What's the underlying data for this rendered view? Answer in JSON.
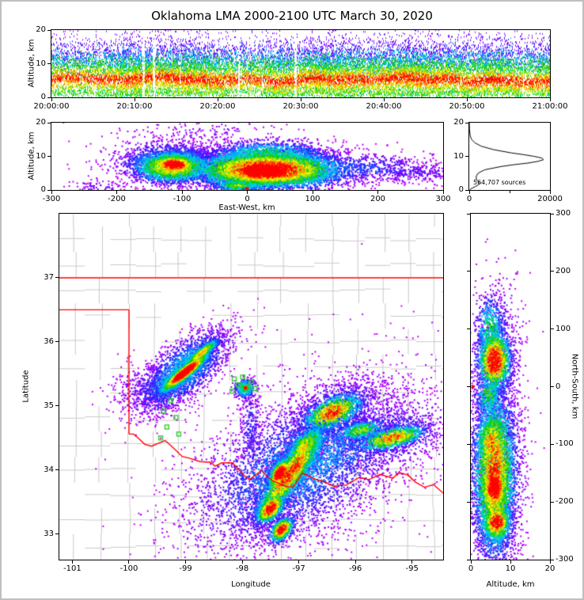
{
  "title": "Oklahoma LMA 2000-2100 UTC March 30, 2020",
  "colors": {
    "background": "#ffffff",
    "frame": "#000000",
    "state_border": "#ff0000",
    "county_border": "#c9c9c9",
    "station_marker": "#33cc33",
    "center_marker": "#ff0000",
    "histogram_line": "#000000",
    "colormap": [
      {
        "t": 0.0,
        "hex": "#cc00ff"
      },
      {
        "t": 0.1,
        "hex": "#8800ff"
      },
      {
        "t": 0.22,
        "hex": "#2222ff"
      },
      {
        "t": 0.34,
        "hex": "#00a0ff"
      },
      {
        "t": 0.46,
        "hex": "#00e0d0"
      },
      {
        "t": 0.58,
        "hex": "#00c800"
      },
      {
        "t": 0.7,
        "hex": "#90e000"
      },
      {
        "t": 0.79,
        "hex": "#ffff00"
      },
      {
        "t": 0.89,
        "hex": "#ff9800"
      },
      {
        "t": 1.0,
        "hex": "#ff0000"
      }
    ]
  },
  "chart_data": [
    {
      "id": "time_height",
      "type": "heatmap",
      "ylabel": "Altitude, km",
      "xlabel": "",
      "x_ticks": [
        "20:00:00",
        "20:10:00",
        "20:20:00",
        "20:30:00",
        "20:40:00",
        "20:50:00",
        "21:00:00"
      ],
      "ylim": [
        0,
        20
      ],
      "y_ticks": [
        0,
        10,
        20
      ],
      "description": "LMA source density vs time and altitude; dense red band 3-8 km with multicolor speckle above to ~18 km and occasional white gaps",
      "bands": [
        {
          "alt_center": 5.2,
          "alt_sigma": 1.8,
          "weight": 0.4,
          "intensity": 0.92
        },
        {
          "alt_center": 8.6,
          "alt_sigma": 1.8,
          "weight": 0.2,
          "intensity": 0.55
        },
        {
          "alt_center": 11.0,
          "alt_sigma": 1.8,
          "weight": 0.14,
          "intensity": 0.34
        },
        {
          "alt_center": 13.5,
          "alt_sigma": 2.2,
          "weight": 0.12,
          "intensity": 0.14
        },
        {
          "alt_center": 1.4,
          "alt_sigma": 1.2,
          "weight": 0.14,
          "intensity": 0.6
        }
      ]
    },
    {
      "id": "ew_cross_section",
      "type": "heatmap",
      "xlabel": "East-West, km",
      "ylabel": "Altitude, km",
      "xlim": [
        -300,
        300
      ],
      "x_ticks": [
        -300,
        -200,
        -100,
        0,
        100,
        200,
        300
      ],
      "ylim": [
        0,
        20
      ],
      "y_ticks": [
        0,
        10,
        20
      ],
      "center_marker": [
        0,
        0.4
      ],
      "features": [
        {
          "x": 30,
          "y": 6.0,
          "sx": 60,
          "sy": 2.9,
          "n": 6000,
          "peak": 0.97
        },
        {
          "x": 25,
          "y": 5.5,
          "sx": 35,
          "sy": 2.2,
          "n": 3500,
          "peak": 1.0
        },
        {
          "x": 30,
          "y": 10.5,
          "sx": 48,
          "sy": 2.2,
          "n": 1200,
          "peak": 0.5
        },
        {
          "x": 150,
          "y": 6.5,
          "sx": 75,
          "sy": 2.4,
          "n": 900,
          "peak": 0.25
        },
        {
          "x": 260,
          "y": 5.0,
          "sx": 40,
          "sy": 1.5,
          "n": 250,
          "peak": 0.15
        },
        {
          "x": -70,
          "y": 17.0,
          "sx": 70,
          "sy": 1.8,
          "n": 120,
          "peak": 0.1
        },
        {
          "x": -15,
          "y": 1.2,
          "sx": 20,
          "sy": 0.9,
          "n": 350,
          "peak": 0.6
        },
        {
          "x": -225,
          "y": 1.0,
          "sx": 25,
          "sy": 0.8,
          "n": 80,
          "peak": 0.12
        },
        {
          "x": -112,
          "y": 7.5,
          "sx": 18,
          "sy": 1.5,
          "n": 1400,
          "peak": 1.0
        },
        {
          "x": -115,
          "y": 7.0,
          "sx": 33,
          "sy": 2.6,
          "n": 2200,
          "peak": 0.75
        },
        {
          "x": -118,
          "y": 8.5,
          "sx": 48,
          "sy": 3.5,
          "n": 900,
          "peak": 0.3
        }
      ]
    },
    {
      "id": "source_altitude_histogram",
      "type": "line",
      "xlabel": "",
      "ylabel": "",
      "xlim": [
        0,
        20000
      ],
      "x_ticks": [
        0,
        20000
      ],
      "x_minor_ticks": [
        10000
      ],
      "ylim": [
        0,
        20
      ],
      "y_ticks": [
        0,
        10,
        20
      ],
      "annotation": "564,707 sources",
      "profile": {
        "alt": [
          0,
          0.5,
          1,
          1.5,
          2,
          2.5,
          3,
          4,
          5,
          6,
          7,
          7.5,
          8,
          8.5,
          9,
          9.5,
          10,
          10.5,
          11,
          12,
          13,
          14,
          15,
          16,
          18,
          20
        ],
        "count": [
          100,
          600,
          1500,
          2200,
          2600,
          2300,
          1800,
          1700,
          2200,
          3800,
          8000,
          11000,
          14500,
          17000,
          18400,
          18000,
          16000,
          13500,
          10500,
          6000,
          3000,
          1400,
          600,
          250,
          60,
          10
        ]
      }
    },
    {
      "id": "plan_view",
      "type": "heatmap",
      "xlabel": "Longitude",
      "ylabel": "Latitude",
      "xlim": [
        -101.23,
        -94.45
      ],
      "x_ticks": [
        -101,
        -100,
        -99,
        -98,
        -97,
        -96,
        -95
      ],
      "ylim": [
        32.6,
        38.0
      ],
      "y_ticks": [
        33,
        34,
        35,
        36,
        37
      ],
      "network_center": [
        -97.94,
        35.28
      ],
      "stations": [
        [
          -98.14,
          35.42
        ],
        [
          -97.99,
          35.45
        ],
        [
          -97.84,
          35.38
        ],
        [
          -98.07,
          35.33
        ],
        [
          -97.9,
          35.3
        ],
        [
          -97.77,
          35.27
        ],
        [
          -98.18,
          35.23
        ],
        [
          -99.26,
          35.08
        ],
        [
          -99.39,
          34.92
        ],
        [
          -99.17,
          34.82
        ],
        [
          -99.33,
          34.67
        ],
        [
          -99.12,
          34.56
        ],
        [
          -99.44,
          34.5
        ]
      ],
      "county_grid": {
        "lons": [
          -100.95,
          -100.5,
          -100.0,
          -99.55,
          -99.1,
          -98.65,
          -98.2,
          -97.75,
          -97.3,
          -96.85,
          -96.4,
          -95.95,
          -95.5,
          -95.05,
          -94.6
        ],
        "lats": [
          32.8,
          33.2,
          33.6,
          34.0,
          34.4,
          34.8,
          35.2,
          35.6,
          36.0,
          36.4,
          36.8,
          37.2,
          37.6
        ]
      },
      "state_border": [
        {
          "name": "kansas-oklahoma",
          "points": [
            [
              -101.23,
              37
            ],
            [
              -94.45,
              37
            ]
          ]
        },
        {
          "name": "panhandle-south",
          "points": [
            [
              -101.23,
              36.5
            ],
            [
              -100.0,
              36.5
            ]
          ]
        },
        {
          "name": "oklahoma-texas-west",
          "points": [
            [
              -100.0,
              36.5
            ],
            [
              -100.0,
              34.56
            ]
          ]
        },
        {
          "name": "red-river",
          "points": [
            [
              -100.0,
              34.56
            ],
            [
              -99.92,
              34.56
            ],
            [
              -99.84,
              34.5
            ],
            [
              -99.72,
              34.4
            ],
            [
              -99.6,
              34.37
            ],
            [
              -99.47,
              34.42
            ],
            [
              -99.36,
              34.46
            ],
            [
              -99.21,
              34.34
            ],
            [
              -99.06,
              34.21
            ],
            [
              -98.92,
              34.18
            ],
            [
              -98.74,
              34.13
            ],
            [
              -98.56,
              34.12
            ],
            [
              -98.48,
              34.06
            ],
            [
              -98.36,
              34.11
            ],
            [
              -98.17,
              34.11
            ],
            [
              -98.09,
              34.03
            ],
            [
              -97.95,
              33.9
            ],
            [
              -97.87,
              33.85
            ],
            [
              -97.66,
              33.99
            ],
            [
              -97.56,
              33.9
            ],
            [
              -97.46,
              33.83
            ],
            [
              -97.21,
              33.74
            ],
            [
              -97.1,
              33.73
            ],
            [
              -96.94,
              33.95
            ],
            [
              -96.69,
              33.85
            ],
            [
              -96.57,
              33.82
            ],
            [
              -96.37,
              33.74
            ],
            [
              -96.28,
              33.76
            ],
            [
              -96.17,
              33.76
            ],
            [
              -95.94,
              33.88
            ],
            [
              -95.76,
              33.85
            ],
            [
              -95.56,
              33.93
            ],
            [
              -95.34,
              33.87
            ],
            [
              -95.23,
              33.96
            ],
            [
              -95.07,
              33.92
            ],
            [
              -94.94,
              33.81
            ],
            [
              -94.78,
              33.73
            ],
            [
              -94.62,
              33.77
            ],
            [
              -94.45,
              33.64
            ]
          ]
        }
      ],
      "features": [
        {
          "x": -99.05,
          "y": 35.55,
          "sx": 0.5,
          "sy": 0.2,
          "rot": 35,
          "n": 2200,
          "peak": 0.4
        },
        {
          "x": -99.02,
          "y": 35.52,
          "sx": 0.28,
          "sy": 0.055,
          "rot": 35,
          "n": 2400,
          "peak": 1.0
        },
        {
          "x": -98.72,
          "y": 35.82,
          "sx": 0.2,
          "sy": 0.045,
          "rot": 35,
          "n": 900,
          "peak": 0.72
        },
        {
          "x": -99.6,
          "y": 35.25,
          "sx": 0.35,
          "sy": 0.22,
          "rot": 0,
          "n": 450,
          "peak": 0.16
        },
        {
          "x": -97.95,
          "y": 35.27,
          "sx": 0.1,
          "sy": 0.08,
          "rot": 0,
          "n": 320,
          "peak": 0.5
        },
        {
          "x": -97.94,
          "y": 35.28,
          "sx": 0.02,
          "sy": 0.02,
          "rot": 0,
          "n": 70,
          "peak": 1.0
        },
        {
          "x": -96.95,
          "y": 34.05,
          "sx": 1.05,
          "sy": 0.5,
          "rot": 25,
          "n": 4800,
          "peak": 0.32
        },
        {
          "x": -97.15,
          "y": 33.95,
          "sx": 0.5,
          "sy": 0.13,
          "rot": 50,
          "n": 2400,
          "peak": 0.85
        },
        {
          "x": -97.33,
          "y": 33.95,
          "sx": 0.14,
          "sy": 0.08,
          "rot": 50,
          "n": 1000,
          "peak": 1.0
        },
        {
          "x": -97.5,
          "y": 33.4,
          "sx": 0.16,
          "sy": 0.09,
          "rot": 40,
          "n": 800,
          "peak": 0.95
        },
        {
          "x": -97.3,
          "y": 33.07,
          "sx": 0.13,
          "sy": 0.08,
          "rot": 40,
          "n": 600,
          "peak": 0.9
        },
        {
          "x": -96.9,
          "y": 34.35,
          "sx": 0.25,
          "sy": 0.12,
          "rot": 45,
          "n": 900,
          "peak": 0.7
        },
        {
          "x": -96.4,
          "y": 34.9,
          "sx": 0.3,
          "sy": 0.13,
          "rot": 20,
          "n": 1100,
          "peak": 0.85
        },
        {
          "x": -96.3,
          "y": 34.95,
          "sx": 0.45,
          "sy": 0.25,
          "rot": 20,
          "n": 650,
          "peak": 0.24
        },
        {
          "x": -95.35,
          "y": 34.5,
          "sx": 0.33,
          "sy": 0.09,
          "rot": 12,
          "n": 950,
          "peak": 0.8
        },
        {
          "x": -95.25,
          "y": 34.55,
          "sx": 0.52,
          "sy": 0.28,
          "rot": 12,
          "n": 650,
          "peak": 0.22
        },
        {
          "x": -95.9,
          "y": 34.62,
          "sx": 0.25,
          "sy": 0.08,
          "rot": 10,
          "n": 500,
          "peak": 0.6
        },
        {
          "x": -97.85,
          "y": 34.7,
          "sx": 0.1,
          "sy": 0.32,
          "rot": 0,
          "n": 260,
          "peak": 0.2
        },
        {
          "x": -96.8,
          "y": 34.0,
          "sx": 1.3,
          "sy": 0.85,
          "rot": 25,
          "n": 600,
          "peak": 0.1
        }
      ]
    },
    {
      "id": "ns_cross_section",
      "type": "heatmap",
      "xlabel": "Altitude, km",
      "ylabel": "North-South, km",
      "xlim": [
        0,
        20
      ],
      "x_ticks": [
        0,
        10,
        20
      ],
      "ylim": [
        -300,
        300
      ],
      "y_ticks": [
        300,
        200,
        100,
        0,
        -100,
        -200,
        -300
      ],
      "y_side": "right",
      "center_marker": [
        0.5,
        0
      ],
      "features": [
        {
          "x": 6,
          "y": 45,
          "sx": 2.2,
          "sy": 28,
          "n": 1600,
          "peak": 0.95
        },
        {
          "x": 5,
          "y": 100,
          "sx": 2.0,
          "sy": 30,
          "n": 500,
          "peak": 0.5
        },
        {
          "x": 7,
          "y": 60,
          "sx": 3.4,
          "sy": 70,
          "n": 450,
          "peak": 0.2
        },
        {
          "x": 4.5,
          "y": -15,
          "sx": 1.8,
          "sy": 20,
          "n": 350,
          "peak": 0.55
        },
        {
          "x": 6,
          "y": -150,
          "sx": 2.8,
          "sy": 75,
          "n": 3800,
          "peak": 0.85
        },
        {
          "x": 6,
          "y": -175,
          "sx": 1.8,
          "sy": 22,
          "n": 1500,
          "peak": 1.0
        },
        {
          "x": 6.5,
          "y": -235,
          "sx": 2.0,
          "sy": 18,
          "n": 900,
          "peak": 0.95
        },
        {
          "x": 5,
          "y": -95,
          "sx": 2.0,
          "sy": 25,
          "n": 700,
          "peak": 0.8
        },
        {
          "x": 7,
          "y": -140,
          "sx": 3.6,
          "sy": 105,
          "n": 1100,
          "peak": 0.22
        }
      ]
    }
  ]
}
